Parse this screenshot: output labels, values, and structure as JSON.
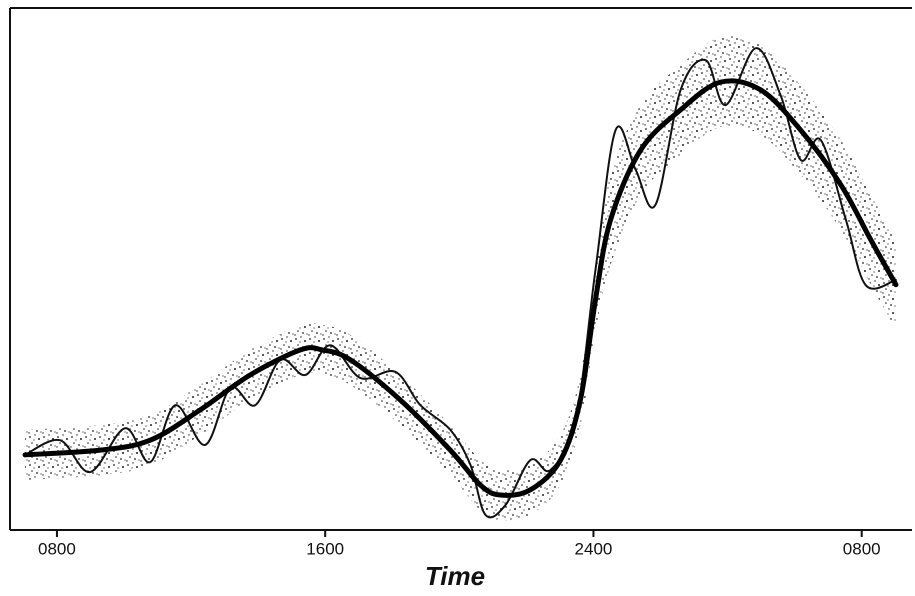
{
  "chart_data": {
    "type": "line",
    "x_label": "Time",
    "xlim": [
      6.6,
      33.5
    ],
    "xticks": [
      {
        "value": 8,
        "label": "0800"
      },
      {
        "value": 16,
        "label": "1600"
      },
      {
        "value": 24,
        "label": "2400"
      },
      {
        "value": 32,
        "label": "0800"
      }
    ],
    "ylim": [
      0,
      100
    ],
    "band": {
      "color": "#222",
      "x": [
        7.05,
        9.29,
        10.78,
        12.27,
        13.76,
        15.26,
        15.91,
        16.75,
        18.24,
        19.73,
        20.63,
        21.23,
        22.12,
        23.02,
        23.61,
        24.06,
        24.51,
        25.41,
        26.6,
        27.79,
        28.99,
        30.18,
        31.38,
        32.27,
        33.02
      ],
      "upper": [
        19.2,
        20.1,
        22.0,
        27.8,
        34.5,
        39.3,
        39.3,
        37.4,
        29.7,
        20.1,
        13.4,
        11.5,
        12.5,
        18.2,
        29.7,
        50.1,
        68.0,
        81.4,
        89.1,
        94.4,
        92.9,
        85.2,
        74.7,
        64.2,
        55.6
      ],
      "lower": [
        9.6,
        10.5,
        12.4,
        18.2,
        24.9,
        29.7,
        29.7,
        27.8,
        20.1,
        10.5,
        3.8,
        1.9,
        2.9,
        8.6,
        20.1,
        38.1,
        50.8,
        64.2,
        71.9,
        77.2,
        75.7,
        68.0,
        57.5,
        47.0,
        38.4
      ]
    },
    "series": [
      {
        "color": "#111",
        "width": 2,
        "x": [
          7.05,
          8.09,
          8.99,
          10.03,
          10.78,
          11.53,
          12.42,
          13.17,
          13.91,
          14.66,
          15.41,
          16.15,
          17.05,
          18.09,
          18.84,
          19.73,
          20.33,
          20.78,
          21.38,
          22.12,
          22.72,
          23.47,
          24.06,
          24.66,
          25.26,
          25.85,
          26.6,
          27.35,
          27.94,
          28.84,
          29.58,
          30.18,
          30.78,
          31.53,
          32.12,
          33.02
        ],
        "values": [
          14.4,
          17.2,
          11.1,
          19.5,
          13.0,
          23.9,
          16.3,
          27.2,
          23.9,
          32.6,
          29.7,
          35.4,
          29.1,
          30.3,
          23.9,
          19.2,
          12.5,
          2.9,
          4.8,
          13.4,
          11.5,
          21.1,
          49.8,
          76.6,
          69.0,
          62.3,
          84.3,
          90.0,
          81.4,
          92.3,
          83.3,
          70.9,
          74.7,
          59.4,
          46.9,
          47.9
        ]
      },
      {
        "color": "#000",
        "width": 5,
        "x": [
          7.05,
          9.29,
          10.78,
          12.27,
          13.76,
          15.26,
          15.91,
          16.75,
          18.24,
          19.73,
          20.63,
          21.23,
          22.12,
          23.02,
          23.61,
          24.06,
          24.51,
          25.41,
          26.6,
          27.79,
          28.99,
          30.18,
          31.38,
          32.27,
          33.02
        ],
        "values": [
          14.4,
          15.3,
          17.2,
          23.0,
          29.7,
          34.5,
          34.5,
          32.6,
          24.9,
          15.3,
          8.6,
          6.7,
          7.7,
          13.4,
          24.9,
          44.1,
          59.4,
          72.8,
          80.5,
          85.8,
          84.3,
          76.6,
          66.1,
          55.6,
          47.0
        ]
      }
    ]
  }
}
